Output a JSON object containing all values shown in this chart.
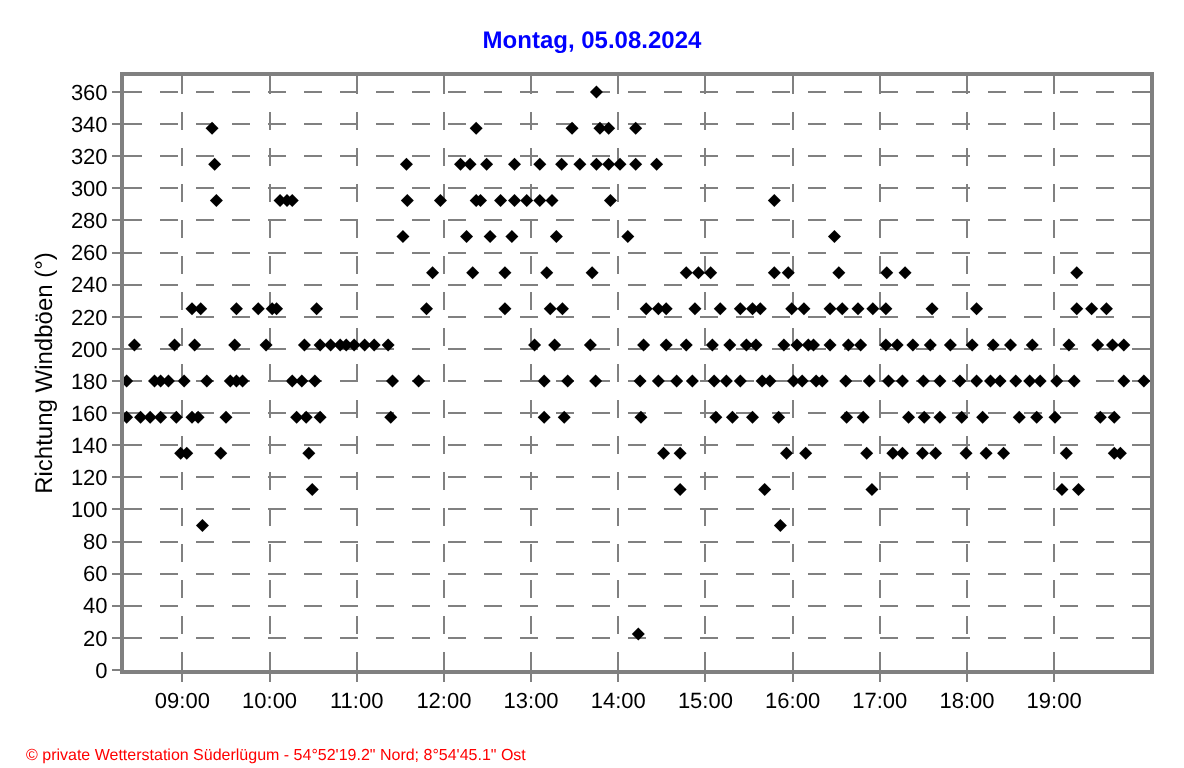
{
  "chart_data": {
    "type": "scatter",
    "title": "Montag, 05.08.2024",
    "ylabel": "Richtung Windböen (°)",
    "annotations": [
      "© private Wetterstation Süderlügum - 54°52'19.2\" Nord; 8°54'45.1\" Ost"
    ],
    "xlim": [
      8.33,
      20.1
    ],
    "xticks": [
      {
        "value": 9,
        "label": "09:00"
      },
      {
        "value": 10,
        "label": "10:00"
      },
      {
        "value": 11,
        "label": "11:00"
      },
      {
        "value": 12,
        "label": "12:00"
      },
      {
        "value": 13,
        "label": "13:00"
      },
      {
        "value": 14,
        "label": "14:00"
      },
      {
        "value": 15,
        "label": "15:00"
      },
      {
        "value": 16,
        "label": "16:00"
      },
      {
        "value": 17,
        "label": "17:00"
      },
      {
        "value": 18,
        "label": "18:00"
      },
      {
        "value": 19,
        "label": "19:00"
      }
    ],
    "ylim": [
      0,
      370
    ],
    "yticks": [
      0,
      20,
      40,
      60,
      80,
      100,
      120,
      140,
      160,
      180,
      200,
      220,
      240,
      260,
      280,
      300,
      320,
      340,
      360
    ],
    "grid": true,
    "marker": "diamond",
    "series": [
      {
        "color": "#000000",
        "x": [
          8.36,
          8.36,
          8.45,
          8.52,
          8.63,
          8.68,
          8.75,
          8.75,
          8.84,
          8.91,
          8.93,
          8.98,
          9.02,
          9.05,
          9.11,
          9.14,
          9.11,
          9.18,
          9.21,
          9.23,
          9.28,
          9.34,
          9.37,
          9.39,
          9.62,
          9.6,
          9.55,
          9.62,
          9.69,
          9.5,
          9.44,
          9.87,
          10.2,
          10.12,
          10.26,
          9.96,
          10.08,
          10.03,
          10.31,
          10.26,
          10.37,
          10.4,
          10.45,
          10.49,
          10.52,
          10.54,
          10.42,
          10.58,
          10.58,
          10.7,
          10.81,
          10.88,
          10.97,
          11.09,
          11.2,
          11.36,
          11.39,
          11.41,
          11.57,
          11.58,
          11.53,
          11.71,
          11.8,
          11.87,
          11.96,
          12.26,
          12.33,
          12.3,
          12.37,
          13.75,
          12.37,
          13.47,
          13.79,
          13.89,
          14.2,
          12.19,
          12.49,
          12.81,
          13.1,
          13.35,
          13.56,
          13.75,
          13.89,
          14.02,
          14.2,
          14.44,
          12.42,
          12.65,
          12.81,
          12.95,
          13.1,
          13.24,
          13.91,
          15.79,
          12.53,
          12.78,
          13.29,
          14.11,
          12.7,
          13.18,
          13.7,
          14.78,
          14.92,
          15.06,
          15.79,
          15.95,
          12.7,
          13.22,
          13.36,
          14.32,
          14.46,
          14.55,
          14.88,
          15.17,
          15.4,
          15.54,
          15.63,
          15.99,
          16.13,
          13.04,
          13.27,
          13.68,
          14.29,
          14.55,
          14.78,
          15.08,
          15.28,
          15.47,
          15.58,
          15.9,
          16.05,
          16.24,
          13.15,
          13.42,
          13.74,
          14.25,
          14.46,
          14.67,
          14.85,
          15.1,
          15.24,
          15.4,
          15.65,
          15.74,
          16.01,
          16.27,
          13.15,
          13.38,
          14.26,
          15.12,
          15.31,
          15.54,
          15.84,
          14.52,
          14.71,
          15.93,
          16.15,
          14.71,
          15.68,
          15.86,
          14.23,
          16.48,
          16.53,
          17.08,
          17.29,
          19.26,
          16.43,
          16.57,
          16.75,
          16.92,
          17.07,
          17.6,
          18.11,
          19.26,
          19.43,
          19.6,
          16.18,
          16.43,
          16.64,
          16.78,
          17.07,
          17.2,
          17.38,
          17.58,
          17.81,
          18.06,
          18.3,
          18.5,
          18.75,
          19.17,
          19.5,
          19.67,
          19.8,
          16.11,
          16.34,
          16.61,
          16.88,
          17.1,
          17.26,
          17.5,
          17.69,
          17.92,
          18.11,
          18.27,
          18.38,
          18.56,
          18.72,
          18.84,
          19.03,
          19.23,
          19.8,
          20.03,
          16.62,
          16.81,
          17.33,
          17.51,
          17.69,
          17.94,
          18.18,
          18.6,
          18.8,
          19.01,
          19.53,
          19.69,
          16.85,
          17.15,
          17.26,
          17.49,
          17.64,
          17.99,
          18.22,
          18.42,
          19.14,
          19.69,
          19.76,
          16.91,
          19.09,
          19.28
        ],
        "values": [
          180,
          157.5,
          202.5,
          157.5,
          157.5,
          180,
          180,
          157.5,
          180,
          202.5,
          157.5,
          135,
          180,
          135,
          225,
          202.5,
          157.5,
          157.5,
          225,
          90,
          180,
          337.5,
          315,
          292.5,
          225,
          202.5,
          180,
          180,
          180,
          157.5,
          135,
          225,
          292.5,
          292.5,
          292.5,
          202.5,
          225,
          225,
          157.5,
          180,
          180,
          202.5,
          135,
          112.5,
          180,
          225,
          157.5,
          157.5,
          202.5,
          202.5,
          202.5,
          202.5,
          202.5,
          202.5,
          202.5,
          202.5,
          157.5,
          180,
          315,
          292.5,
          270,
          180,
          225,
          247.5,
          292.5,
          270,
          247.5,
          315,
          292.5,
          360,
          337.5,
          337.5,
          337.5,
          337.5,
          337.5,
          315,
          315,
          315,
          315,
          315,
          315,
          315,
          315,
          315,
          315,
          315,
          292.5,
          292.5,
          292.5,
          292.5,
          292.5,
          292.5,
          292.5,
          292.5,
          270,
          270,
          270,
          270,
          247.5,
          247.5,
          247.5,
          247.5,
          247.5,
          247.5,
          247.5,
          247.5,
          225,
          225,
          225,
          225,
          225,
          225,
          225,
          225,
          225,
          225,
          225,
          225,
          225,
          202.5,
          202.5,
          202.5,
          202.5,
          202.5,
          202.5,
          202.5,
          202.5,
          202.5,
          202.5,
          202.5,
          202.5,
          202.5,
          180,
          180,
          180,
          180,
          180,
          180,
          180,
          180,
          180,
          180,
          180,
          180,
          180,
          180,
          157.5,
          157.5,
          157.5,
          157.5,
          157.5,
          157.5,
          157.5,
          135,
          135,
          135,
          135,
          112.5,
          112.5,
          90,
          22.5,
          270,
          247.5,
          247.5,
          247.5,
          247.5,
          225,
          225,
          225,
          225,
          225,
          225,
          225,
          225,
          225,
          225,
          202.5,
          202.5,
          202.5,
          202.5,
          202.5,
          202.5,
          202.5,
          202.5,
          202.5,
          202.5,
          202.5,
          202.5,
          202.5,
          202.5,
          202.5,
          202.5,
          202.5,
          180,
          180,
          180,
          180,
          180,
          180,
          180,
          180,
          180,
          180,
          180,
          180,
          180,
          180,
          180,
          180,
          180,
          180,
          180,
          157.5,
          157.5,
          157.5,
          157.5,
          157.5,
          157.5,
          157.5,
          157.5,
          157.5,
          157.5,
          157.5,
          157.5,
          135,
          135,
          135,
          135,
          135,
          135,
          135,
          135,
          135,
          135,
          135,
          112.5,
          112.5,
          112.5
        ]
      }
    ]
  }
}
